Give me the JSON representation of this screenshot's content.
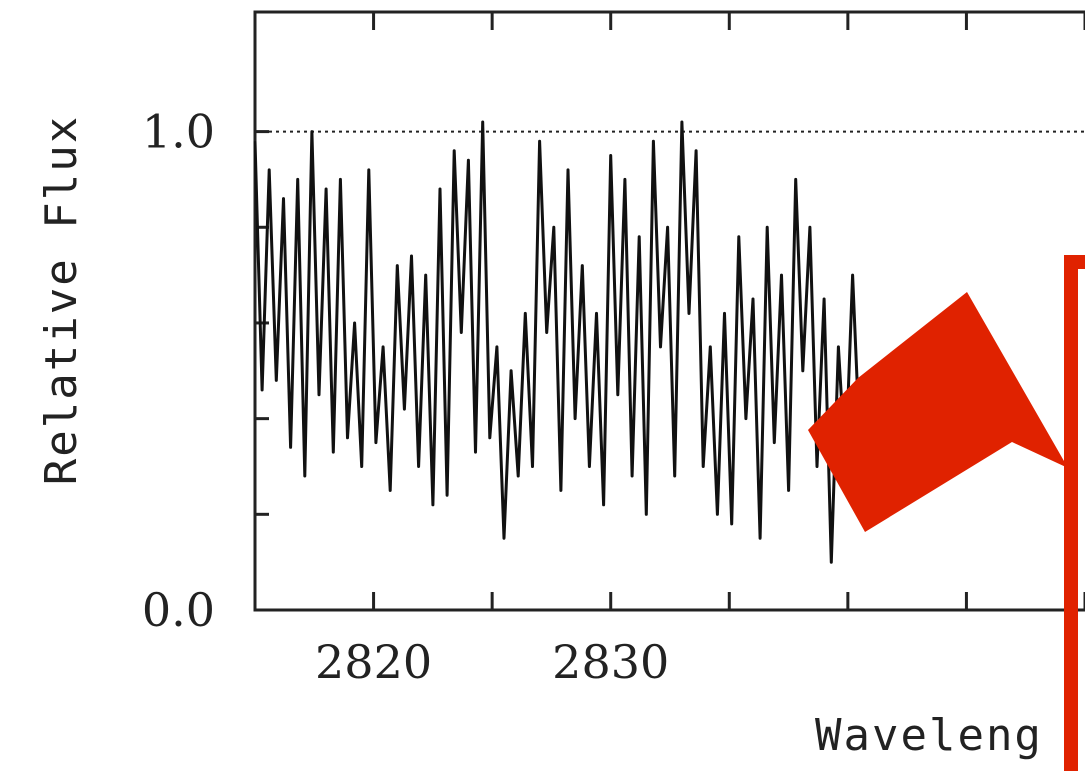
{
  "chart_data": {
    "type": "line",
    "title": "",
    "xlabel": "Wavelength",
    "xlabel_visible": "Waveleng",
    "ylabel": "Relative Flux",
    "xlim": [
      2815,
      2850
    ],
    "ylim": [
      0.0,
      1.25
    ],
    "x_ticks": [
      2820,
      2830
    ],
    "y_tick_labels": [
      "1.0",
      "0.0"
    ],
    "y_tick_values": [
      1.0,
      0.0
    ],
    "y_minor_ticks": [
      0.2,
      0.4,
      0.6,
      0.8
    ],
    "reference_line": {
      "y": 1.0,
      "style": "dotted"
    },
    "grid": false,
    "series": [
      {
        "x": [
          2815.0,
          2815.3,
          2815.6,
          2815.9,
          2816.2,
          2816.5,
          2816.8,
          2817.1,
          2817.4,
          2817.7,
          2818.0,
          2818.3,
          2818.6,
          2818.9,
          2819.2,
          2819.5,
          2819.8,
          2820.1,
          2820.4,
          2820.7,
          2821.0,
          2821.3,
          2821.6,
          2821.9,
          2822.2,
          2822.5,
          2822.8,
          2823.1,
          2823.4,
          2823.7,
          2824.0,
          2824.3,
          2824.6,
          2824.9,
          2825.2,
          2825.5,
          2825.8,
          2826.1,
          2826.4,
          2826.7,
          2827.0,
          2827.3,
          2827.6,
          2827.9,
          2828.2,
          2828.5,
          2828.8,
          2829.1,
          2829.4,
          2829.7,
          2830.0,
          2830.3,
          2830.6,
          2830.9,
          2831.2,
          2831.5,
          2831.8,
          2832.1,
          2832.4,
          2832.7,
          2833.0,
          2833.3,
          2833.6,
          2833.9,
          2834.2,
          2834.5,
          2834.8,
          2835.1,
          2835.4,
          2835.7,
          2836.0,
          2836.3,
          2836.6,
          2836.9,
          2837.2,
          2837.5,
          2837.8,
          2838.1,
          2838.4,
          2838.7,
          2839.0,
          2839.3,
          2839.6,
          2839.9,
          2840.2,
          2840.5
        ],
        "y": [
          0.98,
          0.46,
          0.92,
          0.48,
          0.86,
          0.34,
          0.9,
          0.28,
          1.0,
          0.45,
          0.88,
          0.33,
          0.9,
          0.36,
          0.6,
          0.3,
          0.92,
          0.35,
          0.55,
          0.25,
          0.72,
          0.42,
          0.74,
          0.3,
          0.7,
          0.22,
          0.88,
          0.24,
          0.96,
          0.58,
          0.94,
          0.33,
          1.02,
          0.36,
          0.55,
          0.15,
          0.5,
          0.28,
          0.62,
          0.3,
          0.98,
          0.58,
          0.8,
          0.25,
          0.92,
          0.4,
          0.72,
          0.3,
          0.62,
          0.22,
          0.95,
          0.45,
          0.9,
          0.28,
          0.78,
          0.2,
          0.98,
          0.55,
          0.8,
          0.28,
          1.02,
          0.62,
          0.96,
          0.3,
          0.55,
          0.2,
          0.62,
          0.18,
          0.78,
          0.4,
          0.65,
          0.15,
          0.8,
          0.35,
          0.7,
          0.25,
          0.9,
          0.5,
          0.8,
          0.3,
          0.65,
          0.1,
          0.55,
          0.3,
          0.7,
          0.35
        ]
      }
    ]
  },
  "annotation": {
    "arrow_color": "#e02200",
    "box_color": "#e02200"
  }
}
